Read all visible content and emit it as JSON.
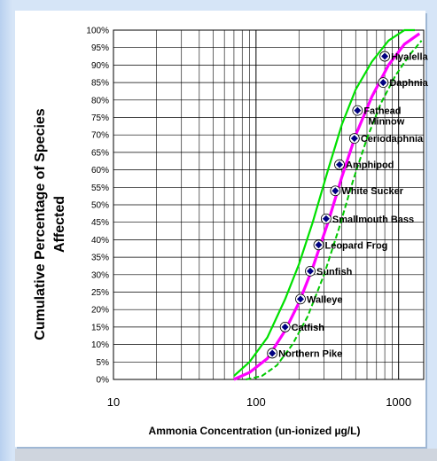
{
  "chart_data": {
    "type": "scatter",
    "title": "",
    "xlabel": "Ammonia Concentration (un-ionized µg/L)",
    "ylabel_line1": "Cumulative Percentage of Species",
    "ylabel_line2": "Affected",
    "x_scale": "log",
    "xlim": [
      10,
      1500
    ],
    "ylim": [
      0,
      100
    ],
    "x_tick_values": [
      10,
      100,
      1000
    ],
    "x_tick_labels": [
      "10",
      "100",
      "1000"
    ],
    "y_tick_values": [
      0,
      5,
      10,
      15,
      20,
      25,
      30,
      35,
      40,
      45,
      50,
      55,
      60,
      65,
      70,
      75,
      80,
      85,
      90,
      95,
      100
    ],
    "y_tick_labels": [
      "0%",
      "5%",
      "10%",
      "15%",
      "20%",
      "25%",
      "30%",
      "35%",
      "40%",
      "45%",
      "50%",
      "55%",
      "60%",
      "65%",
      "70%",
      "75%",
      "80%",
      "85%",
      "90%",
      "95%",
      "100%"
    ],
    "grid": true,
    "colors": {
      "points": "#000080",
      "fit_curve": "#ff00ff",
      "confidence_inner": "#00e000",
      "confidence_outer": "#00c800"
    },
    "points": [
      {
        "label": "Northern Pike",
        "x": 130,
        "y": 7.5
      },
      {
        "label": "Catfish",
        "x": 160,
        "y": 15
      },
      {
        "label": "Walleye",
        "x": 205,
        "y": 23
      },
      {
        "label": "Sunfish",
        "x": 240,
        "y": 31
      },
      {
        "label": "Leopard Frog",
        "x": 275,
        "y": 38.5
      },
      {
        "label": "Smallmouth Bass",
        "x": 310,
        "y": 46
      },
      {
        "label": "White Sucker",
        "x": 360,
        "y": 54
      },
      {
        "label": "Amphipod",
        "x": 385,
        "y": 61.5
      },
      {
        "label": "Ceriodaphnia",
        "x": 490,
        "y": 69
      },
      {
        "label": "Fathead Minnow",
        "x": 515,
        "y": 77
      },
      {
        "label": "Daphnia",
        "x": 780,
        "y": 85
      },
      {
        "label": "Hyalella",
        "x": 800,
        "y": 92.5
      }
    ],
    "fit_curve": {
      "x": [
        70,
        90,
        120,
        160,
        200,
        250,
        320,
        400,
        500,
        650,
        850,
        1100,
        1400
      ],
      "y": [
        0,
        2,
        6,
        14,
        22,
        32,
        45,
        58,
        70,
        81,
        90,
        96,
        99
      ]
    },
    "upper_band": {
      "x": [
        70,
        90,
        120,
        160,
        200,
        250,
        320,
        400,
        500,
        650,
        850,
        1100,
        1300
      ],
      "y": [
        1,
        5,
        12,
        23,
        33,
        45,
        60,
        73,
        83,
        91,
        97,
        100,
        100
      ]
    },
    "lower_band": {
      "x": [
        85,
        110,
        140,
        180,
        230,
        300,
        380,
        480,
        600,
        750,
        950,
        1200,
        1450
      ],
      "y": [
        0,
        1,
        4,
        10,
        18,
        30,
        43,
        57,
        69,
        79,
        87,
        93,
        97
      ]
    }
  }
}
